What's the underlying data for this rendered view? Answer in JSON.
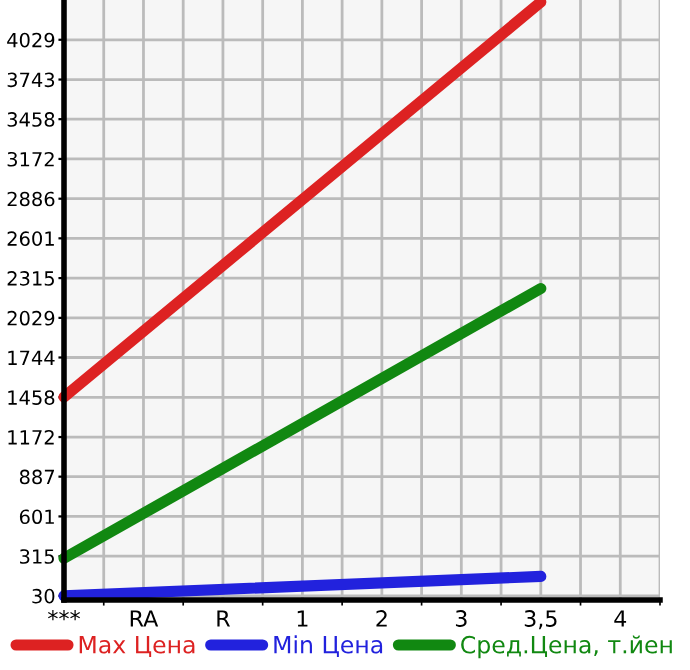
{
  "chart_data": {
    "type": "line",
    "categories": [
      "***",
      "RA",
      "R",
      "1",
      "2",
      "3",
      "3,5",
      "4"
    ],
    "series": [
      {
        "name": "Max Цена",
        "color": "#dd2222",
        "x": [
          "***",
          "3,5"
        ],
        "values": [
          1460,
          4300
        ]
      },
      {
        "name": "Min Цена",
        "color": "#2222dd",
        "x": [
          "***",
          "3,5"
        ],
        "values": [
          30,
          170
        ]
      },
      {
        "name": "Сред.Цена, т.йен",
        "color": "#118811",
        "x": [
          "***",
          "3,5"
        ],
        "values": [
          300,
          2240
        ]
      }
    ],
    "ylim": [
      0,
      4315
    ],
    "yticks": [
      30,
      315,
      601,
      887,
      1172,
      1458,
      1744,
      2029,
      2315,
      2601,
      2886,
      3172,
      3458,
      3743,
      4029
    ],
    "grid": true,
    "legend": "bottom",
    "marker": "none",
    "line_style": "solid"
  }
}
